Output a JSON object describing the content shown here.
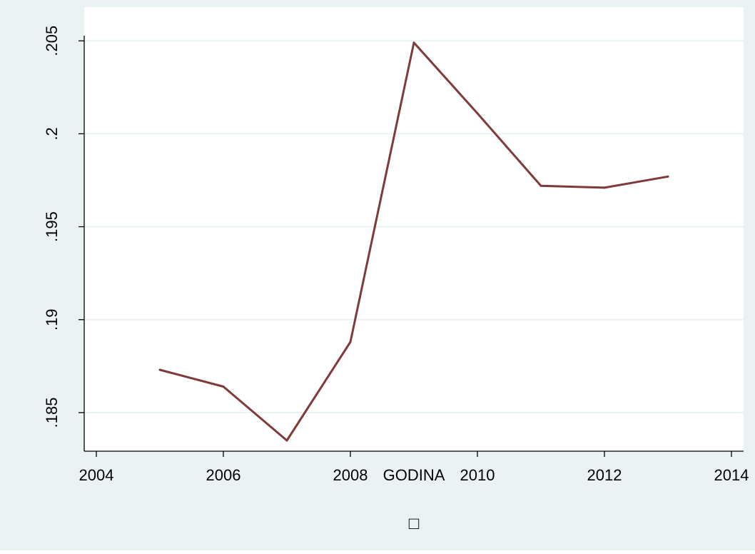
{
  "chart_data": {
    "type": "line",
    "title": "",
    "xlabel": "GODINA",
    "ylabel": "",
    "xlim": [
      2004,
      2014
    ],
    "ylim": [
      0.183,
      0.2052
    ],
    "x_ticks": [
      2004,
      2006,
      2008,
      2010,
      2012,
      2014
    ],
    "x_tick_labels": [
      "2004",
      "2006",
      "2008",
      "2010",
      "2012",
      "2014"
    ],
    "y_ticks": [
      0.185,
      0.19,
      0.195,
      0.2,
      0.205
    ],
    "y_tick_labels": [
      ".185",
      ".19",
      ".195",
      ".2",
      ".205"
    ],
    "grid": true,
    "legend_placement": "bottom-center",
    "legend_symbol": "□",
    "series": [
      {
        "x": [
          2005,
          2006,
          2007,
          2008,
          2009,
          2010,
          2011,
          2012,
          2013
        ],
        "values": [
          0.1873,
          0.1864,
          0.1835,
          0.1888,
          0.2049,
          0.2011,
          0.1972,
          0.1971,
          0.1977
        ]
      }
    ],
    "colors": {
      "line": "#7f3a3a",
      "outer_background": "#eaf2f3",
      "plot_background": "#ffffff",
      "grid": "#eaf2f3",
      "axis": "#000000"
    }
  }
}
